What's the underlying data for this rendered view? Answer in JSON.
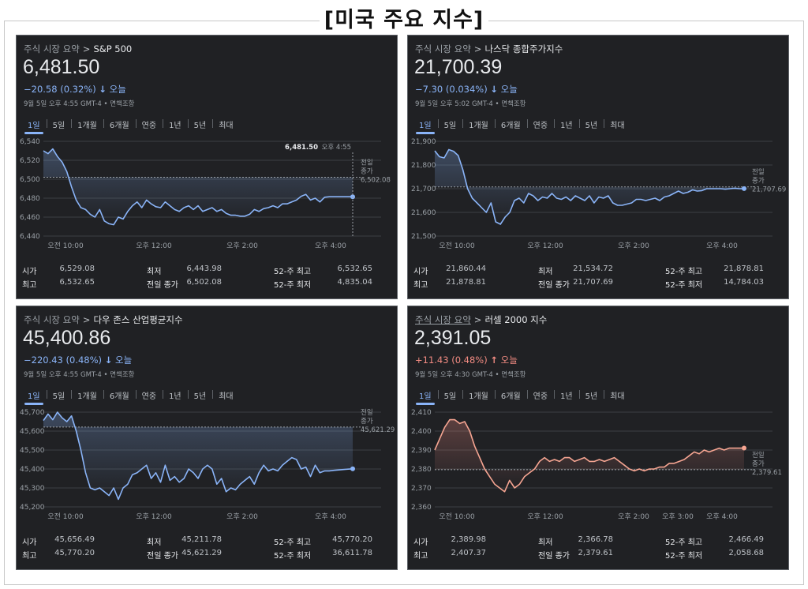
{
  "page_title": "[미국 주요 지수]",
  "panels": [
    {
      "crumb_root": "주식 시장 요약",
      "crumb_root_underlined": false,
      "index_name": "S&P 500",
      "price": "6,481.50",
      "change": "−20.58 (0.32%)",
      "direction": "down",
      "change_suffix": "오늘",
      "meta": "9월 5일 오후 4:55 GMT-4 • 면책조항",
      "tabs": [
        "1일",
        "5일",
        "1개월",
        "6개월",
        "연중",
        "1년",
        "5년",
        "최대"
      ],
      "active_tab": 0,
      "line_color": "#8ab4f8",
      "fill_color": "#8ab4f8",
      "prev_close_label": [
        "전일",
        "종가",
        "6,502.08"
      ],
      "hover_value": "6,481.50",
      "hover_time": "오후 4:55",
      "chart_data": {
        "type": "line",
        "ylim": [
          6440,
          6540
        ],
        "yticks": [
          "6,540",
          "6,520",
          "6,500",
          "6,480",
          "6,460",
          "6,440"
        ],
        "xticks": [
          "오전 10:00",
          "오후 12:00",
          "오후 2:00",
          "오후 4:00"
        ],
        "xtick_pos": [
          0.5,
          2.5,
          4.5,
          6.5
        ],
        "x_end": 7.0,
        "prev_close": 6502.08,
        "values": [
          6530,
          6527,
          6532,
          6524,
          6518,
          6508,
          6492,
          6478,
          6470,
          6468,
          6463,
          6460,
          6468,
          6456,
          6453,
          6452,
          6460,
          6458,
          6466,
          6472,
          6476,
          6470,
          6478,
          6474,
          6471,
          6470,
          6476,
          6472,
          6468,
          6466,
          6470,
          6472,
          6468,
          6472,
          6466,
          6468,
          6470,
          6466,
          6468,
          6464,
          6462,
          6462,
          6461,
          6461,
          6463,
          6468,
          6466,
          6469,
          6470,
          6472,
          6470,
          6474,
          6474,
          6476,
          6478,
          6482,
          6484,
          6478,
          6480,
          6476,
          6481,
          6481.5,
          6481.5,
          6481.5,
          6481.5,
          6481.5,
          6481.5
        ]
      },
      "stats": [
        [
          [
            "시가",
            "6,529.08"
          ],
          [
            "최저",
            "6,443.98"
          ],
          [
            "52-주 최고",
            "6,532.65"
          ]
        ],
        [
          [
            "최고",
            "6,532.65"
          ],
          [
            "전일 종가",
            "6,502.08"
          ],
          [
            "52-주 최저",
            "4,835.04"
          ]
        ]
      ]
    },
    {
      "crumb_root": "주식 시장 요약",
      "crumb_root_underlined": false,
      "index_name": "나스닥 종합주가지수",
      "price": "21,700.39",
      "change": "−7.30 (0.034%)",
      "direction": "down",
      "change_suffix": "오늘",
      "meta": "9월 5일 오후 5:02 GMT-4 • 면책조항",
      "tabs": [
        "1일",
        "5일",
        "1개월",
        "6개월",
        "연중",
        "1년",
        "5년",
        "최대"
      ],
      "active_tab": 0,
      "line_color": "#8ab4f8",
      "fill_color": "#8ab4f8",
      "prev_close_label": [
        "전일",
        "종가",
        "21,707.69"
      ],
      "hover_value": "",
      "hover_time": "",
      "chart_data": {
        "type": "line",
        "ylim": [
          21500,
          21900
        ],
        "yticks": [
          "21,900",
          "21,800",
          "21,700",
          "21,600",
          "21,500"
        ],
        "xticks": [
          "오전 10:00",
          "오후 12:00",
          "오후 2:00",
          "오후 4:00"
        ],
        "xtick_pos": [
          0.5,
          2.5,
          4.5,
          6.5
        ],
        "x_end": 7.0,
        "prev_close": 21707.69,
        "values": [
          21860,
          21835,
          21830,
          21865,
          21858,
          21840,
          21780,
          21700,
          21660,
          21640,
          21620,
          21600,
          21640,
          21560,
          21550,
          21580,
          21600,
          21650,
          21660,
          21640,
          21680,
          21670,
          21650,
          21665,
          21660,
          21680,
          21660,
          21655,
          21665,
          21650,
          21670,
          21660,
          21650,
          21670,
          21640,
          21665,
          21660,
          21670,
          21640,
          21630,
          21630,
          21635,
          21640,
          21655,
          21655,
          21650,
          21655,
          21660,
          21650,
          21665,
          21670,
          21680,
          21690,
          21680,
          21685,
          21695,
          21690,
          21692,
          21700,
          21700,
          21700,
          21700,
          21698,
          21700,
          21702,
          21700,
          21700.39
        ]
      },
      "stats": [
        [
          [
            "시가",
            "21,860.44"
          ],
          [
            "최저",
            "21,534.72"
          ],
          [
            "52-주 최고",
            "21,878.81"
          ]
        ],
        [
          [
            "최고",
            "21,878.81"
          ],
          [
            "전일 종가",
            "21,707.69"
          ],
          [
            "52-주 최저",
            "14,784.03"
          ]
        ]
      ]
    },
    {
      "crumb_root": "주식 시장 요약",
      "crumb_root_underlined": false,
      "index_name": "다우 존스 산업평균지수",
      "price": "45,400.86",
      "change": "−220.43 (0.48%)",
      "direction": "down",
      "change_suffix": "오늘",
      "meta": "9월 5일 오후 4:55 GMT-4 • 면책조항",
      "tabs": [
        "1일",
        "5일",
        "1개월",
        "6개월",
        "연중",
        "1년",
        "5년",
        "최대"
      ],
      "active_tab": 0,
      "line_color": "#8ab4f8",
      "fill_color": "#8ab4f8",
      "prev_close_label": [
        "전일",
        "종가",
        "45,621.29"
      ],
      "hover_value": "",
      "hover_time": "",
      "chart_data": {
        "type": "line",
        "ylim": [
          45200,
          45700
        ],
        "yticks": [
          "45,700",
          "45,600",
          "45,500",
          "45,400",
          "45,300",
          "45,200"
        ],
        "xticks": [
          "오전 10:00",
          "오후 12:00",
          "오후 2:00",
          "오후 4:00"
        ],
        "xtick_pos": [
          0.5,
          2.5,
          4.5,
          6.5
        ],
        "x_end": 7.0,
        "prev_close": 45621.29,
        "values": [
          45656,
          45690,
          45660,
          45700,
          45670,
          45650,
          45680,
          45600,
          45500,
          45380,
          45300,
          45290,
          45300,
          45280,
          45260,
          45300,
          45240,
          45300,
          45320,
          45370,
          45380,
          45400,
          45420,
          45350,
          45380,
          45330,
          45420,
          45340,
          45360,
          45330,
          45350,
          45400,
          45380,
          45350,
          45400,
          45420,
          45400,
          45320,
          45350,
          45280,
          45300,
          45290,
          45320,
          45340,
          45360,
          45320,
          45380,
          45420,
          45390,
          45400,
          45390,
          45420,
          45440,
          45460,
          45450,
          45400,
          45410,
          45360,
          45420,
          45380,
          45390,
          45390,
          45393,
          45395,
          45397,
          45399,
          45400.86
        ]
      },
      "stats": [
        [
          [
            "시가",
            "45,656.49"
          ],
          [
            "최저",
            "45,211.78"
          ],
          [
            "52-주 최고",
            "45,770.20"
          ]
        ],
        [
          [
            "최고",
            "45,770.20"
          ],
          [
            "전일 종가",
            "45,621.29"
          ],
          [
            "52-주 최저",
            "36,611.78"
          ]
        ]
      ]
    },
    {
      "crumb_root": "주식 시장 요약",
      "crumb_root_underlined": true,
      "index_name": "러셀 2000 지수",
      "price": "2,391.05",
      "change": "+11.43 (0.48%)",
      "direction": "up",
      "change_suffix": "오늘",
      "meta": "9월 5일 오후 4:30 GMT-4 • 면책조항",
      "tabs": [
        "1일",
        "5일",
        "1개월",
        "6개월",
        "연중",
        "1년",
        "5년",
        "최대"
      ],
      "active_tab": 0,
      "line_color": "#f6a592",
      "fill_color": "#f28b82",
      "prev_close_label": [
        "전일",
        "종가",
        "2,379.61"
      ],
      "hover_value": "",
      "hover_time": "",
      "chart_data": {
        "type": "line",
        "ylim": [
          2360,
          2410
        ],
        "yticks": [
          "2,410",
          "2,400",
          "2,390",
          "2,380",
          "2,370",
          "2,360"
        ],
        "xticks": [
          "오전 10:00",
          "오후 12:00",
          "오후 2:00",
          "오후 3:00",
          "오후 4:00"
        ],
        "xtick_pos": [
          0.5,
          2.5,
          4.5,
          5.5,
          6.5
        ],
        "x_end": 7.0,
        "prev_close": 2379.61,
        "values": [
          2390,
          2396,
          2402,
          2406,
          2406,
          2404,
          2405,
          2400,
          2392,
          2386,
          2380,
          2376,
          2372,
          2370,
          2368,
          2374,
          2370,
          2372,
          2376,
          2378,
          2380,
          2384,
          2386,
          2384,
          2385,
          2384,
          2386,
          2386,
          2384,
          2385,
          2386,
          2384,
          2384,
          2385,
          2384,
          2385,
          2386,
          2384,
          2382,
          2380,
          2379,
          2380,
          2379,
          2380,
          2380,
          2381,
          2381,
          2383,
          2383,
          2384,
          2385,
          2387,
          2389,
          2388,
          2390,
          2389,
          2390,
          2391,
          2390,
          2391,
          2391,
          2391,
          2391.05
        ]
      },
      "stats": [
        [
          [
            "시가",
            "2,389.98"
          ],
          [
            "최저",
            "2,366.78"
          ],
          [
            "52-주 최고",
            "2,466.49"
          ]
        ],
        [
          [
            "최고",
            "2,407.37"
          ],
          [
            "전일 종가",
            "2,379.61"
          ],
          [
            "52-주 최저",
            "2,058.68"
          ]
        ]
      ]
    }
  ]
}
